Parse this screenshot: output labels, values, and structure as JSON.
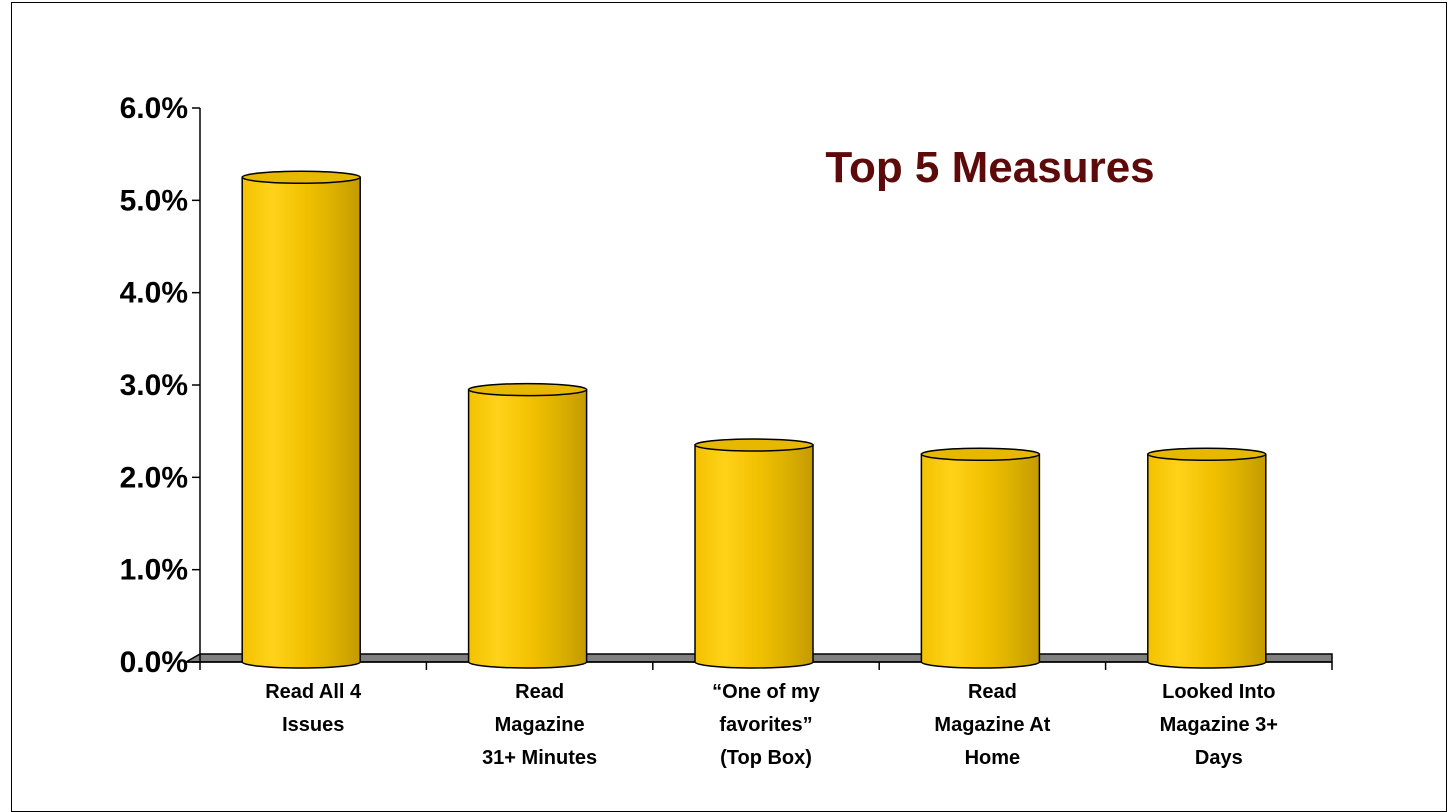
{
  "chart_data": {
    "type": "bar",
    "title": "Top 5 Measures",
    "categories": [
      [
        "Read All 4",
        "Issues"
      ],
      [
        "Read",
        "Magazine",
        "31+ Minutes"
      ],
      [
        "“One of my",
        "favorites”",
        "(Top Box)"
      ],
      [
        "Read",
        "Magazine At",
        "Home"
      ],
      [
        "Looked Into",
        "Magazine 3+",
        "Days"
      ]
    ],
    "values": [
      5.25,
      2.95,
      2.35,
      2.25,
      2.25
    ],
    "value_format": "percent",
    "ylim": [
      0,
      6
    ],
    "yticks": [
      "0.0%",
      "1.0%",
      "2.0%",
      "3.0%",
      "4.0%",
      "5.0%",
      "6.0%"
    ],
    "xlabel": "",
    "ylabel": "",
    "grid": false,
    "legend": "none",
    "style": "3d-cylinder",
    "colors": {
      "bar": "#FFCC00",
      "bar_dark": "#C8A000",
      "floor": "#808080",
      "title": "#5C0A0A"
    }
  }
}
